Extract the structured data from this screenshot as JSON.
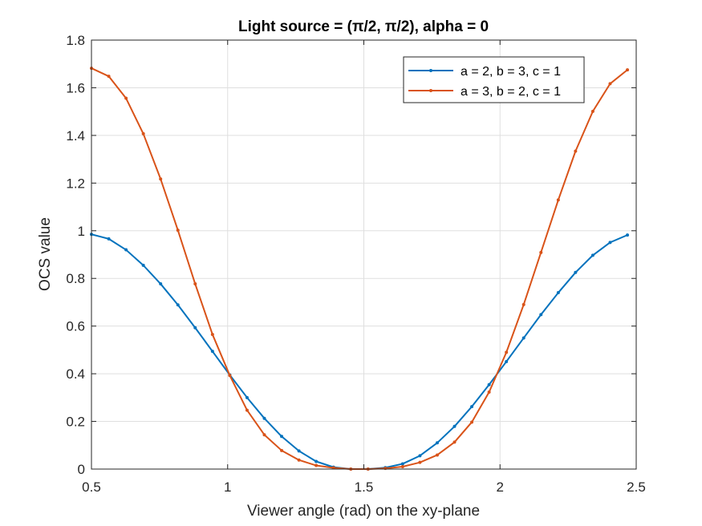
{
  "chart_data": {
    "type": "line",
    "title": "Light source = (π/2, π/2), alpha = 0",
    "xlabel": "Viewer angle (rad) on the xy-plane",
    "ylabel": "OCS value",
    "xlim": [
      0.5,
      2.5
    ],
    "ylim": [
      0,
      1.8
    ],
    "xticks": [
      "0.5",
      "1",
      "1.5",
      "2",
      "2.5"
    ],
    "yticks": [
      "0",
      "0.2",
      "0.4",
      "0.6",
      "0.8",
      "1",
      "1.2",
      "1.4",
      "1.6",
      "1.8"
    ],
    "grid": true,
    "legend_position": "top-right",
    "x": [
      0.5,
      0.5635,
      0.6269,
      0.6904,
      0.7539,
      0.8174,
      0.8808,
      0.9443,
      1.0078,
      1.0713,
      1.1347,
      1.1982,
      1.2617,
      1.3251,
      1.3886,
      1.4521,
      1.5156,
      1.579,
      1.6425,
      1.706,
      1.7695,
      1.8329,
      1.8964,
      1.9599,
      2.0233,
      2.0868,
      2.1503,
      2.2138,
      2.2772,
      2.3407,
      2.4042,
      2.4677
    ],
    "series": [
      {
        "name": "a = 2, b = 3, c = 1",
        "color": "#0072bd",
        "values": [
          0.985,
          0.966,
          0.92,
          0.855,
          0.777,
          0.689,
          0.593,
          0.494,
          0.395,
          0.3,
          0.213,
          0.137,
          0.076,
          0.032,
          0.008,
          0.0,
          0.0,
          0.006,
          0.022,
          0.056,
          0.11,
          0.179,
          0.262,
          0.354,
          0.451,
          0.55,
          0.648,
          0.74,
          0.825,
          0.897,
          0.951,
          0.982
        ]
      },
      {
        "name": "a = 3, b = 2, c = 1",
        "color": "#d95319",
        "values": [
          1.682,
          1.648,
          1.556,
          1.407,
          1.217,
          1.002,
          0.777,
          0.565,
          0.393,
          0.247,
          0.144,
          0.078,
          0.038,
          0.015,
          0.005,
          0.0,
          0.0,
          0.003,
          0.01,
          0.028,
          0.059,
          0.113,
          0.197,
          0.323,
          0.49,
          0.69,
          0.909,
          1.129,
          1.334,
          1.501,
          1.617,
          1.675
        ]
      }
    ]
  }
}
